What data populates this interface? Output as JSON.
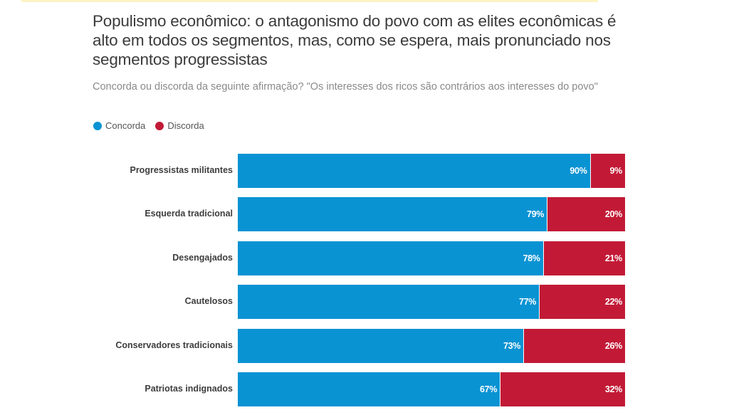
{
  "chart_data": {
    "type": "bar",
    "orientation": "horizontal",
    "stacked": true,
    "title": "Populismo econômico: o antagonismo do povo com as elites econômicas é alto em todos os segmentos, mas, como se espera, mais pronunciado nos segmentos progressistas",
    "subtitle": "Concorda ou discorda da seguinte afirmação? \"Os interesses dos ricos são contrários aos interesses do povo\"",
    "xlabel": "",
    "ylabel": "",
    "xlim": [
      0,
      100
    ],
    "grid": false,
    "legend_position": "top-left",
    "categories": [
      "Progressistas militantes",
      "Esquerda tradicional",
      "Desengajados",
      "Cautelosos",
      "Conservadores tradicionais",
      "Patriotas indignados"
    ],
    "series": [
      {
        "name": "Concorda",
        "color": "#0a93d3",
        "values": [
          90,
          79,
          78,
          77,
          73,
          67
        ],
        "labels": [
          "90%",
          "79%",
          "78%",
          "77%",
          "73%",
          "67%"
        ]
      },
      {
        "name": "Discorda",
        "color": "#c21a36",
        "values": [
          9,
          20,
          21,
          22,
          26,
          32
        ],
        "labels": [
          "9%",
          "20%",
          "21%",
          "22%",
          "26%",
          "32%"
        ]
      }
    ]
  },
  "legend": {
    "items": [
      {
        "label": "Concorda",
        "color": "#0a93d3"
      },
      {
        "label": "Discorda",
        "color": "#c21a36"
      }
    ]
  }
}
